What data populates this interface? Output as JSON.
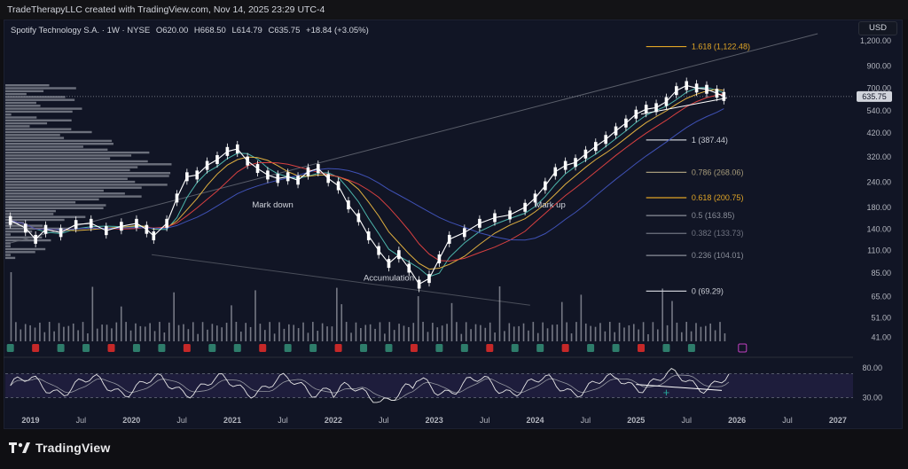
{
  "header": {
    "attribution": "TradeTherapyLLC created with TradingView.com, Nov 14, 2025 23:29 UTC-4"
  },
  "legend": {
    "symbol": "Spotify Technology S.A. · 1W · NYSE",
    "open": "O620.00",
    "high": "H668.50",
    "low": "L614.79",
    "close": "C635.75",
    "change": "+18.84 (+3.05%)"
  },
  "currency": "USD",
  "brand": "TradingView",
  "colors": {
    "background": "#111525",
    "up": "#ffffff",
    "fib_gold": "#e0a526",
    "fib_gray": "#8a8e99",
    "ema_fast": "#4db6ac",
    "ema_mid": "#e0b040",
    "ema_slow": "#d84040",
    "ma_long": "#3f51b5",
    "earnings_red": "#c62828",
    "earnings_green": "#2e7d6b",
    "rsi_band": "#2a2450",
    "rsi_line": "#e6e6e6",
    "rsi_signal": "#9598a1"
  },
  "chart_data": {
    "type": "line",
    "scale": "log",
    "ylim": [
      35,
      1300
    ],
    "price_ticks": [
      "1,200.00",
      "900.00",
      "700.00",
      "540.00",
      "420.00",
      "320.00",
      "240.00",
      "180.00",
      "140.00",
      "110.00",
      "85.00",
      "65.00",
      "51.00",
      "41.00"
    ],
    "price_tick_values": [
      1200,
      900,
      700,
      540,
      420,
      320,
      240,
      180,
      140,
      110,
      85,
      65,
      51,
      41
    ],
    "last_price": "635.75",
    "last_price_value": 635.75,
    "x_labels": [
      "2019",
      "Jul",
      "2020",
      "Jul",
      "2021",
      "Jul",
      "2022",
      "Jul",
      "2023",
      "Jul",
      "2024",
      "Jul",
      "2025",
      "Jul",
      "2026",
      "Jul",
      "2027"
    ],
    "x_label_years": [
      2019.0,
      2019.5,
      2020.0,
      2020.5,
      2021.0,
      2021.5,
      2022.0,
      2022.5,
      2023.0,
      2023.5,
      2024.0,
      2024.5,
      2025.0,
      2025.5,
      2026.0,
      2026.5,
      2027.0
    ],
    "xlim": [
      2018.75,
      2027.15
    ],
    "price_series": {
      "x": [
        2018.8,
        2018.95,
        2019.05,
        2019.15,
        2019.3,
        2019.45,
        2019.6,
        2019.75,
        2019.9,
        2020.05,
        2020.15,
        2020.22,
        2020.35,
        2020.45,
        2020.55,
        2020.65,
        2020.75,
        2020.85,
        2020.95,
        2021.05,
        2021.15,
        2021.25,
        2021.35,
        2021.45,
        2021.55,
        2021.65,
        2021.75,
        2021.85,
        2021.95,
        2022.05,
        2022.15,
        2022.25,
        2022.35,
        2022.45,
        2022.55,
        2022.65,
        2022.75,
        2022.85,
        2022.95,
        2023.05,
        2023.15,
        2023.3,
        2023.45,
        2023.6,
        2023.75,
        2023.9,
        2024.0,
        2024.1,
        2024.2,
        2024.3,
        2024.4,
        2024.5,
        2024.6,
        2024.7,
        2024.8,
        2024.9,
        2025.0,
        2025.1,
        2025.2,
        2025.3,
        2025.4,
        2025.5,
        2025.6,
        2025.7,
        2025.8,
        2025.87
      ],
      "y": [
        155,
        142,
        125,
        140,
        135,
        148,
        150,
        138,
        145,
        150,
        140,
        130,
        150,
        200,
        255,
        260,
        290,
        310,
        340,
        350,
        305,
        280,
        260,
        250,
        255,
        245,
        270,
        280,
        250,
        230,
        185,
        160,
        130,
        110,
        95,
        105,
        90,
        75,
        80,
        100,
        125,
        135,
        150,
        160,
        165,
        180,
        200,
        230,
        270,
        290,
        300,
        330,
        360,
        390,
        430,
        470,
        520,
        550,
        560,
        600,
        680,
        720,
        700,
        690,
        660,
        636
      ]
    },
    "fibonacci": [
      {
        "label": "1.618 (1,122.48)",
        "ratio": "1.618",
        "value": 1122.48,
        "color": "#e0a526"
      },
      {
        "label": "1 (387.44)",
        "ratio": "1",
        "value": 387.44,
        "color": "#c8cbd3"
      },
      {
        "label": "0.786 (268.06)",
        "ratio": "0.786",
        "value": 268.06,
        "color": "#a59a7a"
      },
      {
        "label": "0.618 (200.75)",
        "ratio": "0.618",
        "value": 200.75,
        "color": "#e0a526"
      },
      {
        "label": "0.5 (163.85)",
        "ratio": "0.5",
        "value": 163.85,
        "color": "#8a8e99"
      },
      {
        "label": "0.382 (133.73)",
        "ratio": "0.382",
        "value": 133.73,
        "color": "#6f7380"
      },
      {
        "label": "0.236 (104.01)",
        "ratio": "0.236",
        "value": 104.01,
        "color": "#8a8e99"
      },
      {
        "label": "0 (69.29)",
        "ratio": "0",
        "value": 69.29,
        "color": "#c8cbd3"
      }
    ],
    "annotations": [
      {
        "text": "Mark down",
        "x": 2021.4,
        "y": 180
      },
      {
        "text": "Accumulation",
        "x": 2022.55,
        "y": 78
      },
      {
        "text": "Mark up",
        "x": 2024.15,
        "y": 180
      }
    ],
    "rsi": {
      "ticks": [
        "80.00",
        "30.00"
      ],
      "tick_values": [
        80,
        30
      ],
      "band": [
        30,
        70
      ]
    }
  }
}
